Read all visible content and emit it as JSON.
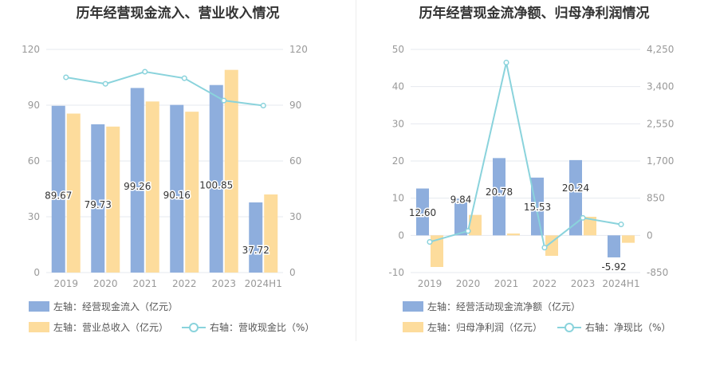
{
  "colors": {
    "blue": "#8eaedd",
    "orange": "#fddc9c",
    "teal": "#8ad3dc",
    "grid": "#e6e9ef",
    "axis": "#999999"
  },
  "chart_data": [
    {
      "type": "bar",
      "title": "历年经营现金流入、营业收入情况",
      "categories": [
        "2019",
        "2020",
        "2021",
        "2022",
        "2023",
        "2024H1"
      ],
      "left_axis": {
        "ylim": [
          0,
          120
        ],
        "ticks": [
          "0",
          "30",
          "60",
          "90",
          "120"
        ]
      },
      "right_axis": {
        "ylim": [
          0,
          120
        ],
        "ticks": [
          "0",
          "30",
          "60",
          "90",
          "120"
        ]
      },
      "series": [
        {
          "name": "经营现金流入",
          "axis": "left",
          "kind": "bar",
          "color": "#8eaedd",
          "values": [
            89.67,
            79.73,
            99.26,
            90.16,
            100.85,
            37.72
          ],
          "labels": [
            "89.67",
            "79.73",
            "99.26",
            "90.16",
            "100.85",
            "37.72"
          ]
        },
        {
          "name": "营业总收入",
          "axis": "left",
          "kind": "bar",
          "color": "#fddc9c",
          "values": [
            85.5,
            78.5,
            92.0,
            86.5,
            109.0,
            42.0
          ]
        },
        {
          "name": "营收现金比",
          "axis": "right",
          "kind": "line",
          "color": "#8ad3dc",
          "values": [
            105.0,
            101.5,
            108.0,
            104.5,
            92.5,
            89.8
          ]
        }
      ],
      "legend": [
        {
          "text": "左轴：经营现金流入（亿元）",
          "kind": "bar",
          "color": "#8eaedd"
        },
        {
          "text": "左轴：营业总收入（亿元）",
          "kind": "bar",
          "color": "#fddc9c"
        },
        {
          "text": "右轴：营收现金比（%）",
          "kind": "line",
          "color": "#8ad3dc"
        }
      ]
    },
    {
      "type": "bar",
      "title": "历年经营现金流净额、归母净利润情况",
      "categories": [
        "2019",
        "2020",
        "2021",
        "2022",
        "2023",
        "2024H1"
      ],
      "left_axis": {
        "ylim": [
          -10,
          50
        ],
        "ticks": [
          "-10",
          "0",
          "10",
          "20",
          "30",
          "40",
          "50"
        ]
      },
      "right_axis": {
        "ylim": [
          -850,
          4250
        ],
        "ticks": [
          "-850",
          "0",
          "850",
          "1,700",
          "2,550",
          "3,400",
          "4,250"
        ]
      },
      "series": [
        {
          "name": "经营活动现金流净额",
          "axis": "left",
          "kind": "bar",
          "color": "#8eaedd",
          "values": [
            12.6,
            9.84,
            20.78,
            15.53,
            20.24,
            -5.92
          ],
          "labels": [
            "12.60",
            "9.84",
            "20.78",
            "15.53",
            "20.24",
            "-5.92"
          ]
        },
        {
          "name": "归母净利润",
          "axis": "left",
          "kind": "bar",
          "color": "#fddc9c",
          "values": [
            -8.5,
            5.5,
            0.5,
            -5.5,
            5.0,
            -2.0
          ]
        },
        {
          "name": "净现比",
          "axis": "right",
          "kind": "line",
          "color": "#8ad3dc",
          "values": [
            -150,
            100,
            3950,
            -280,
            400,
            250
          ]
        }
      ],
      "legend": [
        {
          "text": "左轴：经营活动现金流净额（亿元）",
          "kind": "bar",
          "color": "#8eaedd"
        },
        {
          "text": "左轴：归母净利润（亿元）",
          "kind": "bar",
          "color": "#fddc9c"
        },
        {
          "text": "右轴：净现比（%）",
          "kind": "line",
          "color": "#8ad3dc"
        }
      ]
    }
  ]
}
